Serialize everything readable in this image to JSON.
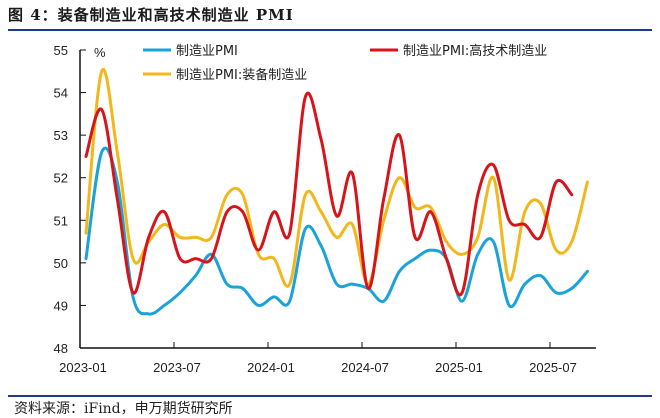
{
  "title": "图 4：装备制造业和高技术制造业 PMI",
  "source": "资料来源：iFind，申万期货研究所",
  "chart_data": {
    "type": "line",
    "title": "图 4：装备制造业和高技术制造业 PMI",
    "ylabel": "%",
    "ylim": [
      48,
      55
    ],
    "yticks": [
      "48",
      "49",
      "50",
      "51",
      "52",
      "53",
      "54",
      "55"
    ],
    "xticks": [
      "2023-01",
      "2023-07",
      "2024-01",
      "2024-07",
      "2025-01",
      "2025-07"
    ],
    "x": [
      "2023-01",
      "2023-02",
      "2023-03",
      "2023-04",
      "2023-05",
      "2023-06",
      "2023-07",
      "2023-08",
      "2023-09",
      "2023-10",
      "2023-11",
      "2023-12",
      "2024-01",
      "2024-02",
      "2024-03",
      "2024-04",
      "2024-05",
      "2024-06",
      "2024-07",
      "2024-08",
      "2024-09",
      "2024-10",
      "2024-11",
      "2024-12",
      "2025-01",
      "2025-02",
      "2025-03",
      "2025-04",
      "2025-05",
      "2025-06",
      "2025-07",
      "2025-08",
      "2025-09"
    ],
    "series": [
      {
        "name": "制造业PMI",
        "color": "#1aa3d9",
        "values": [
          50.1,
          52.6,
          51.9,
          49.2,
          48.8,
          49.0,
          49.3,
          49.7,
          50.2,
          49.5,
          49.4,
          49.0,
          49.2,
          49.1,
          50.8,
          50.4,
          49.5,
          49.5,
          49.4,
          49.1,
          49.8,
          50.1,
          50.3,
          50.1,
          49.1,
          50.2,
          50.5,
          49.0,
          49.5,
          49.7,
          49.3,
          49.4,
          49.8
        ]
      },
      {
        "name": "制造业PMI:高技术制造业",
        "color": "#d7141a",
        "values": [
          52.5,
          53.6,
          51.5,
          49.3,
          50.6,
          51.2,
          50.1,
          50.1,
          50.1,
          51.2,
          51.2,
          50.3,
          51.2,
          50.7,
          53.9,
          52.9,
          51.1,
          52.1,
          49.4,
          51.5,
          53.0,
          50.6,
          51.2,
          50.1,
          49.3,
          51.6,
          52.3,
          51.0,
          50.9,
          50.6,
          51.9,
          51.6,
          null
        ]
      },
      {
        "name": "制造业PMI:装备制造业",
        "color": "#f2b71c",
        "values": [
          50.7,
          54.5,
          52.6,
          50.1,
          50.5,
          50.9,
          50.6,
          50.6,
          50.6,
          51.6,
          51.6,
          50.2,
          50.1,
          49.5,
          51.6,
          51.2,
          50.6,
          50.9,
          49.5,
          51.0,
          52.0,
          51.3,
          51.3,
          50.5,
          50.2,
          50.6,
          52.0,
          49.6,
          51.2,
          51.4,
          50.3,
          50.5,
          51.9
        ]
      }
    ],
    "legend": "top"
  }
}
